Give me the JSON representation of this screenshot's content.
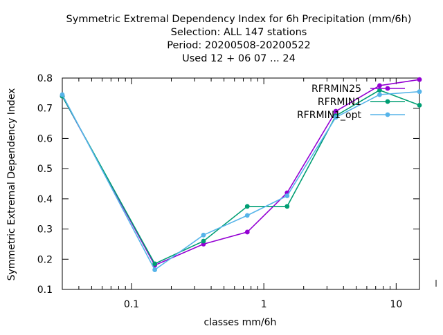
{
  "chart_data": {
    "type": "line",
    "title_lines": [
      "Symmetric Extremal Dependency Index  for 6h Precipitation (mm/6h)",
      "Selection: ALL    147 stations",
      "Period: 20200508-20200522",
      "Used  12 + 06 07 ... 24"
    ],
    "xlabel": "classes mm/6h",
    "ylabel": "Symmetric Extremal Dependency Index",
    "x_scale": "log",
    "xlim": [
      0.03,
      15
    ],
    "ylim": [
      0.1,
      0.8
    ],
    "x_tick_labels": [
      {
        "value": 0.1,
        "label": "0.1"
      },
      {
        "value": 1,
        "label": "1"
      },
      {
        "value": 10,
        "label": "10"
      }
    ],
    "y_tick_labels": [
      "0.1",
      "0.2",
      "0.3",
      "0.4",
      "0.5",
      "0.6",
      "0.7",
      "0.8"
    ],
    "y_ticks": [
      0.1,
      0.2,
      0.3,
      0.4,
      0.5,
      0.6,
      0.7,
      0.8
    ],
    "grid": false,
    "legend_position": "top-right",
    "series": [
      {
        "name": "RFRMIN25",
        "color": "#9400d3",
        "x": [
          0.03,
          0.15,
          0.35,
          0.75,
          1.5,
          3.5,
          7.5,
          15
        ],
        "y": [
          0.74,
          0.18,
          0.25,
          0.29,
          0.42,
          0.69,
          0.775,
          0.795
        ]
      },
      {
        "name": "RFRMIN1",
        "color": "#009e73",
        "x": [
          0.03,
          0.15,
          0.35,
          0.75,
          1.5,
          3.5,
          7.5,
          15
        ],
        "y": [
          0.74,
          0.185,
          0.26,
          0.375,
          0.375,
          0.675,
          0.76,
          0.71
        ]
      },
      {
        "name": "RFRMIN1_opt",
        "color": "#56b4e9",
        "x": [
          0.03,
          0.15,
          0.35,
          0.75,
          1.5,
          3.5,
          7.5,
          15
        ],
        "y": [
          0.745,
          0.165,
          0.28,
          0.345,
          0.41,
          0.67,
          0.745,
          0.755
        ]
      }
    ]
  }
}
